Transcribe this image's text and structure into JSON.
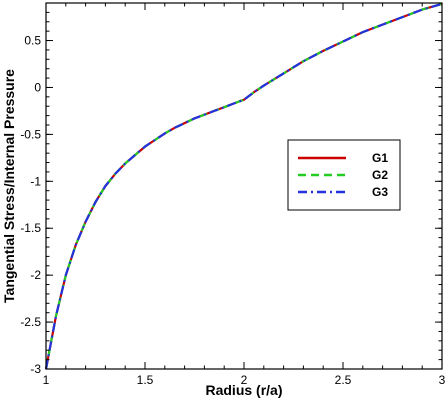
{
  "chart_data": {
    "type": "line",
    "xlabel": "Radius (r/a)",
    "ylabel": "Tangential Stress/Internal Pressure",
    "xlim": [
      1,
      3
    ],
    "ylim": [
      -3,
      0.9
    ],
    "xticks": [
      1,
      1.5,
      2,
      2.5,
      3
    ],
    "xtick_labels": [
      "1",
      "1.5",
      "2",
      "2.5",
      "3"
    ],
    "yticks": [
      0.5,
      0,
      -0.5,
      -1,
      -1.5,
      -2,
      -2.5,
      -3
    ],
    "ytick_labels": [
      "0.5",
      "0",
      "-0.5",
      "-1",
      "-1.5",
      "-2",
      "-2.5",
      "-3"
    ],
    "grid": false,
    "legend_position": "right-middle",
    "x": [
      1.0,
      1.05,
      1.1,
      1.15,
      1.2,
      1.25,
      1.3,
      1.35,
      1.4,
      1.45,
      1.5,
      1.55,
      1.6,
      1.65,
      1.7,
      1.75,
      1.8,
      1.85,
      1.9,
      1.95,
      2.0,
      2.05,
      2.1,
      2.2,
      2.3,
      2.4,
      2.5,
      2.6,
      2.7,
      2.8,
      2.9,
      3.0
    ],
    "series": [
      {
        "name": "G1",
        "color": "#cc0000",
        "dash": "solid",
        "values": [
          -3.0,
          -2.44,
          -2.0,
          -1.68,
          -1.43,
          -1.22,
          -1.05,
          -0.92,
          -0.81,
          -0.72,
          -0.63,
          -0.56,
          -0.49,
          -0.43,
          -0.38,
          -0.33,
          -0.29,
          -0.25,
          -0.21,
          -0.17,
          -0.13,
          -0.05,
          0.02,
          0.15,
          0.28,
          0.39,
          0.49,
          0.59,
          0.67,
          0.75,
          0.83,
          0.89
        ]
      },
      {
        "name": "G2",
        "color": "#22cc22",
        "dash": "dashed",
        "values": [
          -3.0,
          -2.44,
          -2.0,
          -1.68,
          -1.43,
          -1.22,
          -1.05,
          -0.92,
          -0.81,
          -0.72,
          -0.63,
          -0.56,
          -0.49,
          -0.43,
          -0.38,
          -0.33,
          -0.29,
          -0.25,
          -0.21,
          -0.17,
          -0.13,
          -0.05,
          0.02,
          0.15,
          0.28,
          0.39,
          0.49,
          0.59,
          0.67,
          0.75,
          0.83,
          0.89
        ]
      },
      {
        "name": "G3",
        "color": "#2233dd",
        "dash": "dashdot",
        "values": [
          -3.0,
          -2.44,
          -2.0,
          -1.68,
          -1.43,
          -1.22,
          -1.05,
          -0.92,
          -0.81,
          -0.72,
          -0.63,
          -0.56,
          -0.49,
          -0.43,
          -0.38,
          -0.33,
          -0.29,
          -0.25,
          -0.21,
          -0.17,
          -0.13,
          -0.05,
          0.02,
          0.15,
          0.28,
          0.39,
          0.49,
          0.59,
          0.67,
          0.75,
          0.83,
          0.89
        ]
      }
    ]
  }
}
